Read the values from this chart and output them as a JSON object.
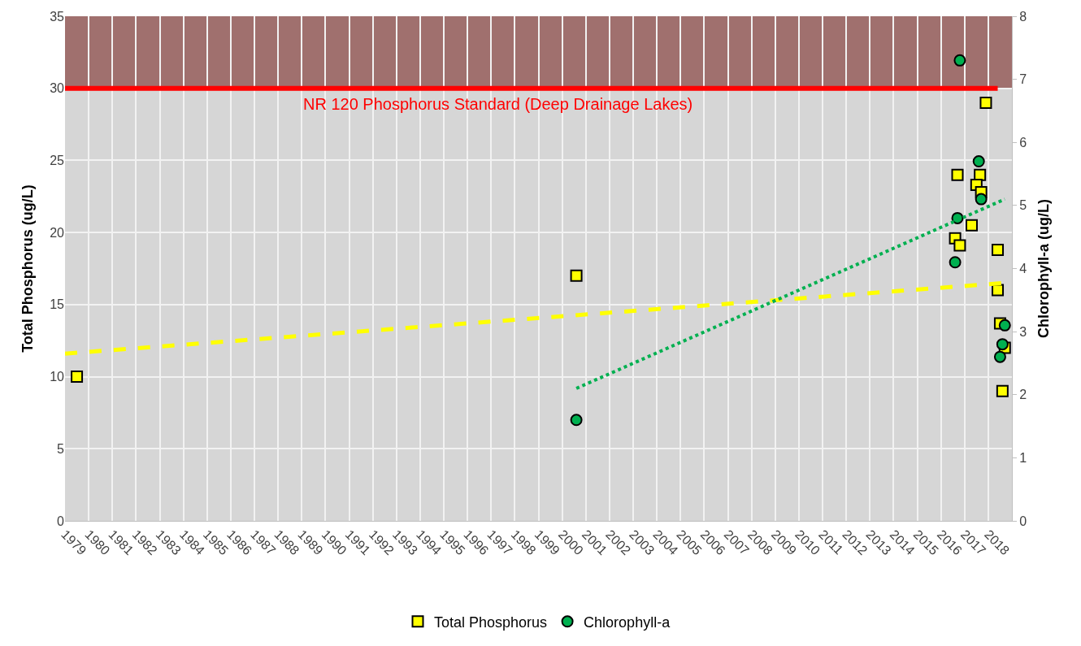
{
  "chart_data": {
    "type": "scatter",
    "xlabel": null,
    "ylabel": "Total Phosphorus (ug/L)",
    "y2label": "Chlorophyll-a (ug/L)",
    "xlim": [
      1979,
      2019
    ],
    "xticks": [
      1979,
      1980,
      1981,
      1982,
      1983,
      1984,
      1985,
      1986,
      1987,
      1988,
      1989,
      1990,
      1991,
      1992,
      1993,
      1994,
      1995,
      1996,
      1997,
      1998,
      1999,
      2000,
      2001,
      2002,
      2003,
      2004,
      2005,
      2006,
      2007,
      2008,
      2009,
      2010,
      2011,
      2012,
      2013,
      2014,
      2015,
      2016,
      2017,
      2018,
      {
        "value": 2019,
        "label": null
      }
    ],
    "ylim": [
      0,
      35
    ],
    "yticks": [
      0,
      5,
      10,
      15,
      20,
      25,
      30,
      35
    ],
    "y2lim": [
      0,
      8
    ],
    "y2ticks": [
      0,
      1,
      2,
      3,
      4,
      5,
      6,
      7,
      8
    ],
    "grid": true,
    "legend": "bottom",
    "series": [
      {
        "name": "Total Phosphorus",
        "marker": "square",
        "color": "#ffff00",
        "x": [
          1979.5,
          2000.6,
          2017.9,
          2016.7,
          2017.65,
          2017.5,
          2017.7,
          2017.3,
          2016.6,
          2016.8,
          2018.4,
          2018.4,
          2018.5,
          2018.7,
          2018.6
        ],
        "values": [
          10.0,
          17.0,
          29.0,
          24.0,
          24.0,
          23.3,
          22.8,
          20.5,
          19.6,
          19.1,
          18.8,
          16.0,
          13.7,
          12.0,
          9.0
        ]
      },
      {
        "name": "Chlorophyll-a",
        "marker": "circle",
        "color": "#00b050",
        "axis": "y2",
        "x": [
          2000.6,
          2016.8,
          2017.6,
          2017.7,
          2016.7,
          2016.6,
          2018.7,
          2018.6,
          2018.5
        ],
        "values": [
          1.6,
          7.3,
          5.7,
          5.1,
          4.8,
          4.1,
          3.1,
          2.8,
          2.6
        ]
      },
      {
        "type": "line",
        "line_style": "dashed",
        "color": "#ffff00",
        "x": [
          1979.0,
          2018.7
        ],
        "values": [
          11.6,
          16.5
        ]
      },
      {
        "type": "line",
        "line_style": "dotted",
        "color": "#00b050",
        "axis": "y2",
        "x": [
          2000.6,
          2018.7
        ],
        "values": [
          2.1,
          5.1
        ]
      }
    ],
    "bands": [
      {
        "axis": "y",
        "from": 30,
        "to": 35,
        "color": "#a0706e"
      }
    ],
    "ref_lines": [
      {
        "axis": "y",
        "value": 30,
        "label": "NR 120 Phosphorus Standard (Deep Drainage Lakes)",
        "color": "#ff0000",
        "line_style": "solid"
      }
    ]
  }
}
